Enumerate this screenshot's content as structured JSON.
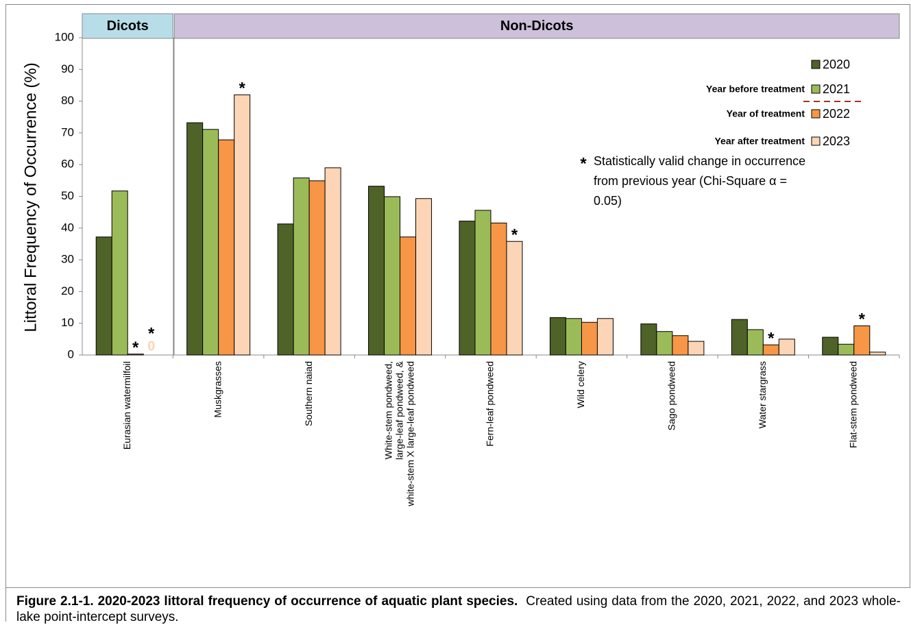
{
  "chart_data": {
    "type": "bar",
    "ylabel": "Littoral Frequency of Occurrence (%)",
    "groups": [
      {
        "name": "Dicots",
        "color": "#b7dde8",
        "count": 1
      },
      {
        "name": "Non-Dicots",
        "color": "#ccc0da",
        "count": 8
      }
    ],
    "categories": [
      "Eurasian watermilfoil",
      "Muskgrasses",
      "Southern naiad",
      "White-stem pondweed,\nlarge-leaf pondweed, &\nwhite-stem X large-leaf pondweed",
      "Fern-leaf pondweed",
      "Wild celery",
      "Sago pondweed",
      "Water stargrass",
      "Flat-stem pondweed"
    ],
    "series": [
      {
        "name": "2020",
        "color": "#4f6228",
        "values": [
          37.2,
          73.2,
          41.3,
          53.2,
          42.2,
          11.8,
          9.8,
          11.2,
          5.6
        ],
        "flags": [
          null,
          null,
          null,
          null,
          null,
          null,
          null,
          null,
          null
        ]
      },
      {
        "name": "2021",
        "note": "Year before treatment",
        "color": "#9bbb59",
        "values": [
          51.7,
          71.1,
          55.8,
          49.9,
          45.6,
          11.5,
          7.4,
          8.0,
          3.4
        ],
        "flags": [
          null,
          null,
          null,
          null,
          null,
          null,
          null,
          null,
          null
        ]
      },
      {
        "name": "2022",
        "note": "Year of treatment",
        "color": "#f79646",
        "values": [
          0.3,
          67.8,
          54.9,
          37.2,
          41.6,
          10.3,
          6.1,
          3.2,
          9.2
        ],
        "flags": [
          "*",
          null,
          null,
          null,
          null,
          null,
          null,
          "*",
          "*"
        ]
      },
      {
        "name": "2023",
        "note": "Year after treatment",
        "color": "#fbd5b5",
        "values": [
          0,
          82.0,
          59.0,
          49.3,
          35.8,
          11.5,
          4.3,
          5.0,
          0.9
        ],
        "flags": [
          "*",
          "*",
          null,
          null,
          "*",
          null,
          null,
          null,
          null
        ]
      }
    ],
    "significance_note": {
      "symbol": "*",
      "lines": [
        "Statistically valid change in occurrence",
        "from previous year (Chi-Square α =",
        "0.05)"
      ]
    },
    "ylim": [
      0,
      100
    ],
    "yticks": [
      0,
      10,
      20,
      30,
      40,
      50,
      60,
      70,
      80,
      90,
      100
    ],
    "grid": false,
    "legend": "upper right"
  },
  "caption": {
    "label": "Figure 2.1-1.  2020-2023 littoral frequency of occurrence of aquatic plant species.",
    "text": "Created using data from the 2020, 2021, 2022, and 2023 whole-lake point-intercept surveys."
  }
}
